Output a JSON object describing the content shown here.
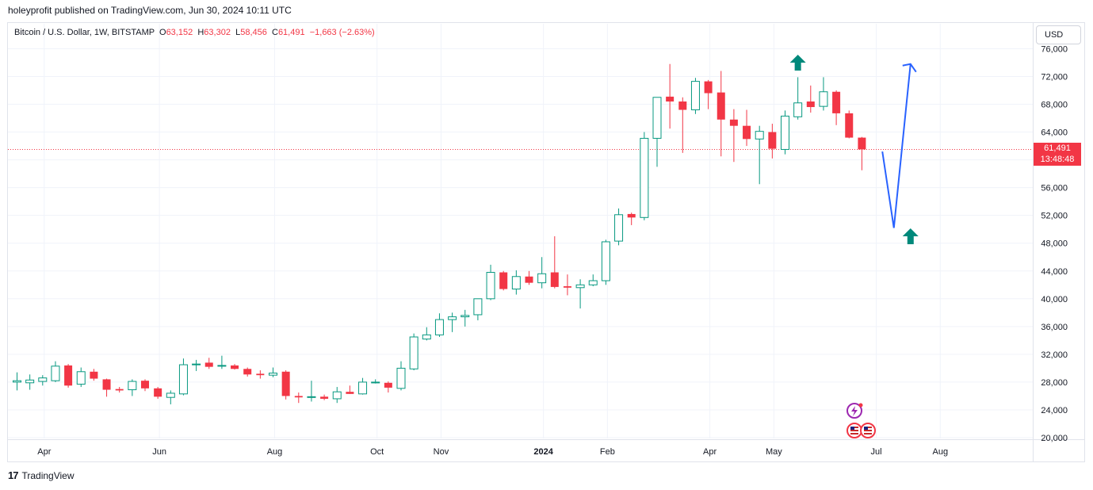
{
  "header": {
    "published_text": "holeyprofit published on TradingView.com, Jun 30, 2024 10:11 UTC"
  },
  "legend": {
    "symbol": "Bitcoin / U.S. Dollar, 1W, BITSTAMP",
    "open_label": "O",
    "open_value": "63,152",
    "high_label": "H",
    "high_value": "63,302",
    "low_label": "L",
    "low_value": "58,456",
    "close_label": "C",
    "close_value": "61,491",
    "change": "−1,663 (−2.63%)"
  },
  "currency_button": "USD",
  "price_badge": {
    "price": "61,491",
    "countdown": "13:48:48"
  },
  "footer": {
    "brand": "TradingView",
    "logo_text": "17"
  },
  "colors": {
    "up": "#089981",
    "down": "#f23645",
    "drawing": "#2962ff",
    "arrow": "#00897b"
  },
  "chart_data": {
    "type": "candlestick",
    "ylim": [
      20000,
      75000
    ],
    "y_ticks": [
      "20,000",
      "24,000",
      "28,000",
      "32,000",
      "36,000",
      "40,000",
      "44,000",
      "48,000",
      "52,000",
      "56,000",
      "60,000",
      "64,000",
      "68,000",
      "72,000",
      "76,000"
    ],
    "y_tick_values": [
      20000,
      24000,
      28000,
      32000,
      36000,
      40000,
      44000,
      48000,
      52000,
      56000,
      60000,
      64000,
      68000,
      72000,
      76000
    ],
    "x_ticks": [
      {
        "label": "Apr",
        "index": 2
      },
      {
        "label": "Jun",
        "index": 11
      },
      {
        "label": "Aug",
        "index": 20
      },
      {
        "label": "Oct",
        "index": 28
      },
      {
        "label": "Nov",
        "index": 33
      },
      {
        "label": "2024",
        "index": 41
      },
      {
        "label": "Feb",
        "index": 46
      },
      {
        "label": "Apr",
        "index": 54
      },
      {
        "label": "May",
        "index": 59
      },
      {
        "label": "Jul",
        "index": 67
      },
      {
        "label": "Aug",
        "index": 72
      }
    ],
    "candles": [
      {
        "o": 28000,
        "h": 29400,
        "l": 26800,
        "c": 28200
      },
      {
        "o": 27900,
        "h": 29100,
        "l": 26900,
        "c": 28300
      },
      {
        "o": 28100,
        "h": 29000,
        "l": 27500,
        "c": 28600
      },
      {
        "o": 28200,
        "h": 31000,
        "l": 28000,
        "c": 30300
      },
      {
        "o": 30400,
        "h": 30600,
        "l": 27200,
        "c": 27500
      },
      {
        "o": 27700,
        "h": 30100,
        "l": 27300,
        "c": 29500
      },
      {
        "o": 29500,
        "h": 29900,
        "l": 28200,
        "c": 28500
      },
      {
        "o": 28400,
        "h": 28500,
        "l": 25900,
        "c": 26900
      },
      {
        "o": 27000,
        "h": 27300,
        "l": 26500,
        "c": 26800
      },
      {
        "o": 26900,
        "h": 28400,
        "l": 26000,
        "c": 28100
      },
      {
        "o": 28200,
        "h": 28400,
        "l": 26700,
        "c": 27100
      },
      {
        "o": 27100,
        "h": 27300,
        "l": 25600,
        "c": 25900
      },
      {
        "o": 25800,
        "h": 26800,
        "l": 24800,
        "c": 26400
      },
      {
        "o": 26300,
        "h": 31400,
        "l": 26100,
        "c": 30500
      },
      {
        "o": 30500,
        "h": 31200,
        "l": 29600,
        "c": 30600
      },
      {
        "o": 30800,
        "h": 31500,
        "l": 29900,
        "c": 30200
      },
      {
        "o": 30300,
        "h": 31800,
        "l": 29900,
        "c": 30400
      },
      {
        "o": 30400,
        "h": 30600,
        "l": 29800,
        "c": 29900
      },
      {
        "o": 29900,
        "h": 30100,
        "l": 28800,
        "c": 29100
      },
      {
        "o": 29200,
        "h": 29700,
        "l": 28500,
        "c": 29000
      },
      {
        "o": 29000,
        "h": 30100,
        "l": 28700,
        "c": 29300
      },
      {
        "o": 29500,
        "h": 29700,
        "l": 25500,
        "c": 26000
      },
      {
        "o": 26000,
        "h": 26500,
        "l": 25000,
        "c": 25800
      },
      {
        "o": 25800,
        "h": 28200,
        "l": 25200,
        "c": 25900
      },
      {
        "o": 25900,
        "h": 26200,
        "l": 25400,
        "c": 25600
      },
      {
        "o": 25600,
        "h": 27300,
        "l": 25000,
        "c": 26600
      },
      {
        "o": 26600,
        "h": 27500,
        "l": 26300,
        "c": 26300
      },
      {
        "o": 26300,
        "h": 28600,
        "l": 26200,
        "c": 28000
      },
      {
        "o": 28000,
        "h": 28400,
        "l": 27800,
        "c": 28000
      },
      {
        "o": 27900,
        "h": 28100,
        "l": 26500,
        "c": 27200
      },
      {
        "o": 27100,
        "h": 31000,
        "l": 26800,
        "c": 30000
      },
      {
        "o": 29900,
        "h": 35000,
        "l": 29700,
        "c": 34500
      },
      {
        "o": 34200,
        "h": 35900,
        "l": 34000,
        "c": 34800
      },
      {
        "o": 34800,
        "h": 37900,
        "l": 34500,
        "c": 37000
      },
      {
        "o": 37000,
        "h": 38000,
        "l": 35200,
        "c": 37400
      },
      {
        "o": 37400,
        "h": 38400,
        "l": 36000,
        "c": 37600
      },
      {
        "o": 37700,
        "h": 40000,
        "l": 36900,
        "c": 40000
      },
      {
        "o": 40000,
        "h": 44900,
        "l": 39800,
        "c": 43800
      },
      {
        "o": 43800,
        "h": 44000,
        "l": 41200,
        "c": 41400
      },
      {
        "o": 41400,
        "h": 44100,
        "l": 40600,
        "c": 43200
      },
      {
        "o": 43200,
        "h": 44000,
        "l": 42000,
        "c": 42300
      },
      {
        "o": 42300,
        "h": 46000,
        "l": 41500,
        "c": 43600
      },
      {
        "o": 43800,
        "h": 49000,
        "l": 41500,
        "c": 41700
      },
      {
        "o": 41800,
        "h": 43500,
        "l": 40500,
        "c": 41600
      },
      {
        "o": 41600,
        "h": 42800,
        "l": 38600,
        "c": 42000
      },
      {
        "o": 42000,
        "h": 43500,
        "l": 41800,
        "c": 42600
      },
      {
        "o": 42600,
        "h": 48500,
        "l": 42000,
        "c": 48200
      },
      {
        "o": 48300,
        "h": 53000,
        "l": 47700,
        "c": 52100
      },
      {
        "o": 52200,
        "h": 52400,
        "l": 50600,
        "c": 51700
      },
      {
        "o": 51700,
        "h": 64000,
        "l": 51300,
        "c": 63100
      },
      {
        "o": 63100,
        "h": 69000,
        "l": 59000,
        "c": 69000
      },
      {
        "o": 69100,
        "h": 73800,
        "l": 64500,
        "c": 68400
      },
      {
        "o": 68400,
        "h": 69000,
        "l": 61000,
        "c": 67200
      },
      {
        "o": 67200,
        "h": 71800,
        "l": 66600,
        "c": 71300
      },
      {
        "o": 71300,
        "h": 71500,
        "l": 67300,
        "c": 69600
      },
      {
        "o": 69700,
        "h": 72800,
        "l": 60500,
        "c": 65800
      },
      {
        "o": 65800,
        "h": 67300,
        "l": 59700,
        "c": 64900
      },
      {
        "o": 64900,
        "h": 67200,
        "l": 62000,
        "c": 63000
      },
      {
        "o": 63000,
        "h": 64900,
        "l": 56500,
        "c": 64100
      },
      {
        "o": 64000,
        "h": 65200,
        "l": 60200,
        "c": 61600
      },
      {
        "o": 61500,
        "h": 67100,
        "l": 60800,
        "c": 66300
      },
      {
        "o": 66200,
        "h": 71900,
        "l": 65800,
        "c": 68200
      },
      {
        "o": 68400,
        "h": 70700,
        "l": 66800,
        "c": 67600
      },
      {
        "o": 67700,
        "h": 71900,
        "l": 67100,
        "c": 69800
      },
      {
        "o": 69800,
        "h": 70000,
        "l": 65000,
        "c": 66700
      },
      {
        "o": 66700,
        "h": 67100,
        "l": 63100,
        "c": 63200
      },
      {
        "o": 63200,
        "h": 63300,
        "l": 58500,
        "c": 61500
      }
    ],
    "last_price": 61491,
    "drawing_path": [
      {
        "index": 67.6,
        "price": 61200
      },
      {
        "index": 68.5,
        "price": 50200
      },
      {
        "index": 69.8,
        "price": 73800
      }
    ],
    "arrows_up": [
      {
        "index": 61.0,
        "price": 74000
      },
      {
        "index": 69.8,
        "price": 49000
      }
    ]
  }
}
